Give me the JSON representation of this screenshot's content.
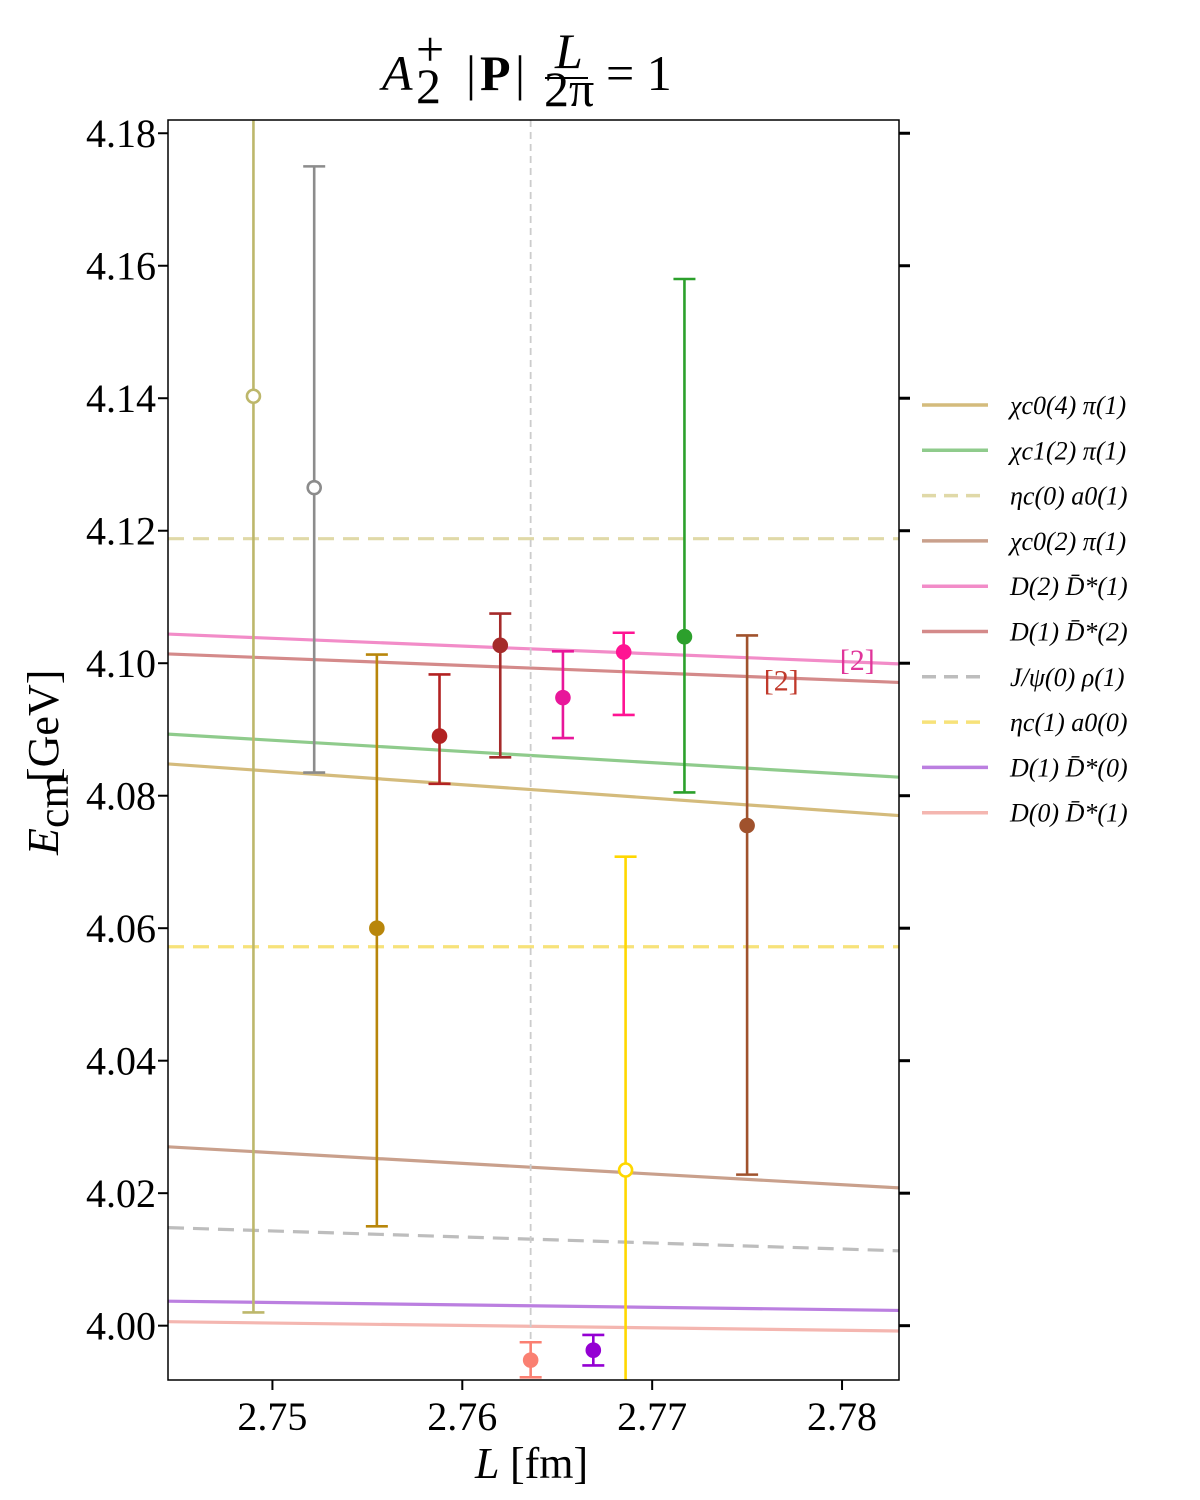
{
  "chart_data": {
    "type": "scatter",
    "title": "A_2^+ |P| L/2π = 1",
    "xlabel": "L [fm]",
    "ylabel": "E_cm [GeV]",
    "xlim": [
      2.7445,
      2.783
    ],
    "ylim": [
      3.9918,
      4.182
    ],
    "x_ticks": [
      2.75,
      2.76,
      2.77,
      2.78
    ],
    "x_tick_labels": [
      "2.75",
      "2.76",
      "2.77",
      "2.78"
    ],
    "y_ticks": [
      4.0,
      4.02,
      4.04,
      4.06,
      4.08,
      4.1,
      4.12,
      4.14,
      4.16,
      4.18
    ],
    "y_tick_labels": [
      "4.00",
      "4.02",
      "4.04",
      "4.06",
      "4.08",
      "4.10",
      "4.12",
      "4.14",
      "4.16",
      "4.18"
    ],
    "vertical_reference_line": {
      "x": 2.7636,
      "color": "#cccccc",
      "dashed": true
    },
    "legend_position": "right",
    "grid": false,
    "levels": [
      {
        "name": "χc0(4) π(1)",
        "color": "#d4bb7c",
        "dashed": false,
        "y": [
          4.0848,
          4.077
        ]
      },
      {
        "name": "χc1(2) π(1)",
        "color": "#8fcb8c",
        "dashed": false,
        "y": [
          4.0893,
          4.0828
        ]
      },
      {
        "name": "ηc(0) a0(1)",
        "color": "#e0d9a8",
        "dashed": true,
        "y": [
          4.1188,
          4.1188
        ]
      },
      {
        "name": "χc0(2) π(1)",
        "color": "#c9a08c",
        "dashed": false,
        "y": [
          4.027,
          4.0208
        ]
      },
      {
        "name": "D(2) D̄*(1)",
        "color": "#f28cc8",
        "dashed": false,
        "y": [
          4.1044,
          4.0999
        ]
      },
      {
        "name": "D(1) D̄*(2)",
        "color": "#d48a8a",
        "dashed": false,
        "y": [
          4.1014,
          4.0971
        ]
      },
      {
        "name": "J/ψ(0) ρ(1)",
        "color": "#bdbdbd",
        "dashed": true,
        "y": [
          4.0148,
          4.0113
        ]
      },
      {
        "name": "ηc(1) a0(0)",
        "color": "#f7e27a",
        "dashed": true,
        "y": [
          4.0572,
          4.0572
        ]
      },
      {
        "name": "D(1) D̄*(0)",
        "color": "#bb7fe0",
        "dashed": false,
        "y": [
          4.0037,
          4.0023
        ]
      },
      {
        "name": "D(0) D̄*(1)",
        "color": "#f4b6b0",
        "dashed": false,
        "y": [
          4.0006,
          3.9992
        ]
      }
    ],
    "level_annotations": [
      {
        "text": "[2]",
        "color": "#c0392b",
        "x": 2.7768,
        "y": 4.0977
      },
      {
        "text": "[2]",
        "color": "#e0359a",
        "x": 2.7808,
        "y": 4.1008
      }
    ],
    "points": [
      {
        "x": 2.749,
        "y": 4.1403,
        "low": 4.002,
        "high": 4.182,
        "color": "#bdb76b",
        "filled": false,
        "capped_low": true,
        "capped_high": false
      },
      {
        "x": 2.7522,
        "y": 4.1265,
        "low": 4.0835,
        "high": 4.175,
        "color": "#8c8c8c",
        "filled": false,
        "capped_low": true,
        "capped_high": true
      },
      {
        "x": 2.7555,
        "y": 4.06,
        "low": 4.015,
        "high": 4.1013,
        "color": "#b8860b",
        "filled": true,
        "capped_low": true,
        "capped_high": true
      },
      {
        "x": 2.7588,
        "y": 4.089,
        "low": 4.0818,
        "high": 4.0983,
        "color": "#b22222",
        "filled": true,
        "capped_low": true,
        "capped_high": true
      },
      {
        "x": 2.762,
        "y": 4.1027,
        "low": 4.0858,
        "high": 4.1075,
        "color": "#a52a2a",
        "filled": true,
        "capped_low": true,
        "capped_high": true
      },
      {
        "x": 2.7636,
        "y": 3.9948,
        "low": 3.9922,
        "high": 3.9975,
        "color": "#fa8072",
        "filled": true,
        "capped_low": true,
        "capped_high": true
      },
      {
        "x": 2.7653,
        "y": 4.0948,
        "low": 4.0887,
        "high": 4.1018,
        "color": "#e8179a",
        "filled": true,
        "capped_low": true,
        "capped_high": true
      },
      {
        "x": 2.7669,
        "y": 3.9963,
        "low": 3.994,
        "high": 3.9986,
        "color": "#9400d3",
        "filled": true,
        "capped_low": true,
        "capped_high": true
      },
      {
        "x": 2.7685,
        "y": 4.1017,
        "low": 4.0922,
        "high": 4.1046,
        "color": "#ff1493",
        "filled": true,
        "capped_low": true,
        "capped_high": true
      },
      {
        "x": 2.7686,
        "y": 4.0235,
        "low": 3.9918,
        "high": 4.0708,
        "color": "#ffd700",
        "filled": false,
        "capped_low": false,
        "capped_high": true
      },
      {
        "x": 2.7717,
        "y": 4.104,
        "low": 4.0805,
        "high": 4.158,
        "color": "#2ca02c",
        "filled": true,
        "capped_low": true,
        "capped_high": true
      },
      {
        "x": 2.775,
        "y": 4.0755,
        "low": 4.0228,
        "high": 4.1042,
        "color": "#a0522d",
        "filled": true,
        "capped_low": true,
        "capped_high": true
      }
    ]
  }
}
